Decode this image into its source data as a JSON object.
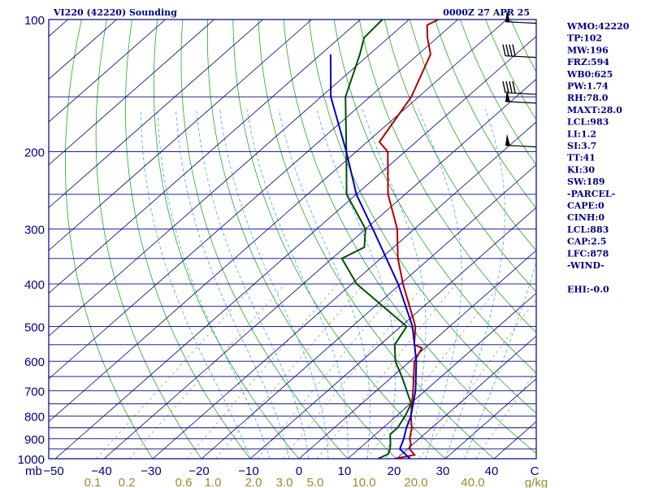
{
  "header": {
    "title": "VI220 (42220) Sounding",
    "time": "0000Z 27 APR 25"
  },
  "indices": [
    "WMO:42220",
    "TP:102",
    "MW:196",
    "FRZ:594",
    "WB0:625",
    "PW:1.74",
    "RH:78.0",
    "MAXT:28.0",
    "LCL:983",
    "LI:1.2",
    "SI:3.7",
    "TT:41",
    "KI:30",
    "SW:189",
    "-PARCEL-",
    "CAPE:0",
    "CINH:0",
    "LCL:883",
    "CAP:2.5",
    "LFC:878",
    "-WIND-",
    "",
    "EHI:-0.0"
  ],
  "colors": {
    "frame": "#000080",
    "isobar": "#000080",
    "isotherm": "#000080",
    "dry_adiabat": "#22aa22",
    "moist_adiabat": "#44aadd",
    "mixing_ratio": "#a09050",
    "temperature": "#b00000",
    "dewpoint": "#005000",
    "parcel": "#0000c0",
    "wind_barb": "#000000"
  },
  "chart_data": {
    "type": "skew-t log-p",
    "pressure_axis": {
      "unit": "mb",
      "range": [
        1000,
        100
      ],
      "scale": "log",
      "tick_labels": [
        "100",
        "200",
        "300",
        "400",
        "500",
        "600",
        "700",
        "800",
        "900",
        "1000"
      ]
    },
    "temperature_axis": {
      "unit": "C",
      "range": [
        -50,
        50
      ],
      "tick_labels": [
        "−50",
        "−40",
        "−30",
        "−20",
        "−10",
        "0",
        "10",
        "20",
        "30",
        "40",
        "C"
      ]
    },
    "mixing_ratio_axis": {
      "unit": "g/kg",
      "tick_labels": [
        "0.1",
        "0.2",
        "0.6",
        "1.0",
        "2.0",
        "3.0",
        "5.0",
        "10.0",
        "20.0",
        "40.0",
        "g/kg"
      ]
    },
    "series": [
      {
        "role": "temperature",
        "points": [
          {
            "p": 1000,
            "t": 19.6
          },
          {
            "p": 980,
            "t": 22.8
          },
          {
            "p": 950,
            "t": 20.4
          },
          {
            "p": 925,
            "t": 19.5
          },
          {
            "p": 900,
            "t": 18.0
          },
          {
            "p": 850,
            "t": 15.9
          },
          {
            "p": 800,
            "t": 13.0
          },
          {
            "p": 700,
            "t": 7.5
          },
          {
            "p": 600,
            "t": 0.9
          },
          {
            "p": 560,
            "t": -0.6
          },
          {
            "p": 550,
            "t": -3.0
          },
          {
            "p": 500,
            "t": -7.0
          },
          {
            "p": 400,
            "t": -19.5
          },
          {
            "p": 350,
            "t": -26.5
          },
          {
            "p": 300,
            "t": -33.5
          },
          {
            "p": 250,
            "t": -43.5
          },
          {
            "p": 200,
            "t": -53.5
          },
          {
            "p": 190,
            "t": -57.5
          },
          {
            "p": 150,
            "t": -61.5
          },
          {
            "p": 120,
            "t": -67.5
          },
          {
            "p": 110,
            "t": -72.0
          },
          {
            "p": 103,
            "t": -75.0
          },
          {
            "p": 100,
            "t": -74.0
          }
        ]
      },
      {
        "role": "dewpoint",
        "points": [
          {
            "p": 1000,
            "t": 16.2
          },
          {
            "p": 975,
            "t": 17.2
          },
          {
            "p": 950,
            "t": 16.4
          },
          {
            "p": 925,
            "t": 15.3
          },
          {
            "p": 880,
            "t": 13.0
          },
          {
            "p": 850,
            "t": 13.0
          },
          {
            "p": 800,
            "t": 11.8
          },
          {
            "p": 750,
            "t": 10.2
          },
          {
            "p": 650,
            "t": 1.9
          },
          {
            "p": 600,
            "t": -3.0
          },
          {
            "p": 550,
            "t": -7.0
          },
          {
            "p": 500,
            "t": -8.8
          },
          {
            "p": 400,
            "t": -29.0
          },
          {
            "p": 350,
            "t": -38.0
          },
          {
            "p": 330,
            "t": -36.0
          },
          {
            "p": 300,
            "t": -40.0
          },
          {
            "p": 250,
            "t": -52.0
          },
          {
            "p": 200,
            "t": -62.0
          },
          {
            "p": 150,
            "t": -75.0
          },
          {
            "p": 120,
            "t": -82.0
          },
          {
            "p": 110,
            "t": -85.0
          },
          {
            "p": 100,
            "t": -85.5
          }
        ]
      },
      {
        "role": "parcel",
        "points": [
          {
            "p": 1000,
            "t": 22.8
          },
          {
            "p": 950,
            "t": 18.4
          },
          {
            "p": 900,
            "t": 16.8
          },
          {
            "p": 850,
            "t": 14.8
          },
          {
            "p": 800,
            "t": 13.0
          },
          {
            "p": 700,
            "t": 8.0
          },
          {
            "p": 600,
            "t": 1.3
          },
          {
            "p": 500,
            "t": -7.6
          },
          {
            "p": 400,
            "t": -20.5
          },
          {
            "p": 300,
            "t": -38.5
          },
          {
            "p": 250,
            "t": -50.0
          },
          {
            "p": 200,
            "t": -62.0
          },
          {
            "p": 150,
            "t": -78.0
          },
          {
            "p": 120,
            "t": -88.0
          }
        ]
      }
    ],
    "wind_barbs": [
      {
        "p": 102,
        "knots": 50
      },
      {
        "p": 122,
        "knots": 40
      },
      {
        "p": 148,
        "knots": 40
      },
      {
        "p": 155,
        "knots": 50
      },
      {
        "p": 195,
        "knots": 50
      }
    ]
  }
}
